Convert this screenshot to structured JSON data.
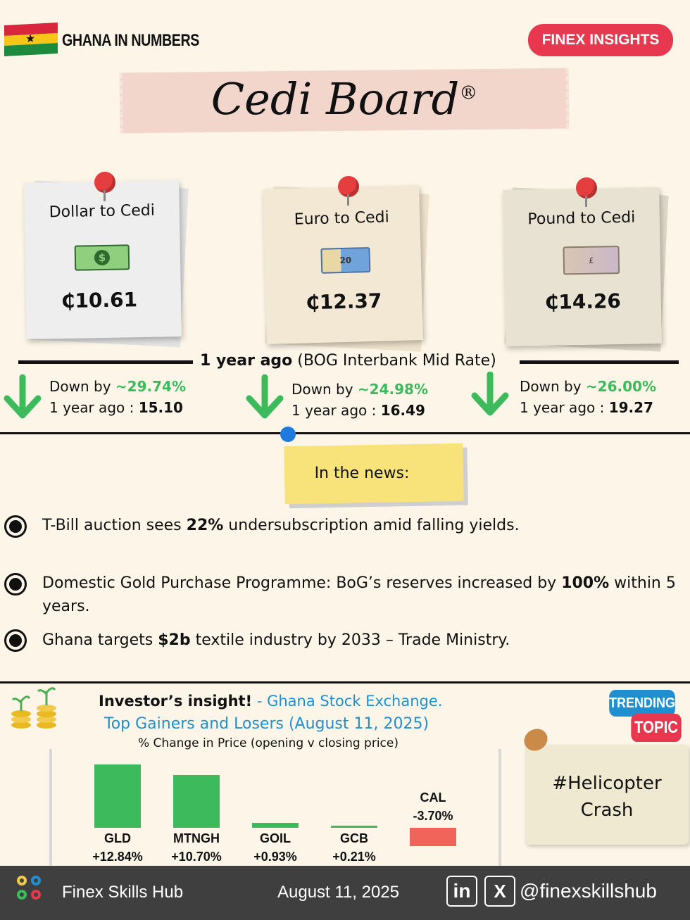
{
  "header": {
    "brand": "GHANA IN NUMBERS",
    "badge": "FINEX INSIGHTS",
    "title": "Cedi Board",
    "title_mark": "®"
  },
  "rates": [
    {
      "label": "Dollar to Cedi",
      "value": "₵10.61",
      "down_text": "Down by",
      "down_pct": "~29.74%",
      "ago_text": "1 year ago :",
      "ago_value": "15.10",
      "icon": "dollar-bill-icon"
    },
    {
      "label": "Euro to Cedi",
      "value": "₵12.37",
      "down_text": "Down by",
      "down_pct": "~24.98%",
      "ago_text": "1 year ago :",
      "ago_value": "16.49",
      "icon": "euro-note-icon"
    },
    {
      "label": "Pound to Cedi",
      "value": "₵14.26",
      "down_text": "Down by",
      "down_pct": "~26.00%",
      "ago_text": "1 year ago :",
      "ago_value": "19.27",
      "icon": "pound-note-icon"
    }
  ],
  "rate_caption": {
    "bold": "1 year ago",
    "rest": " (BOG Interbank Mid Rate)"
  },
  "news": {
    "label": "In the news:",
    "items": [
      {
        "pre": "T-Bill auction sees ",
        "bold": "22%",
        "post": " undersubscription amid falling yields."
      },
      {
        "pre": "Domestic Gold Purchase Programme: BoG’s reserves increased by ",
        "bold": "100%",
        "post": " within 5 years."
      },
      {
        "pre": "Ghana targets ",
        "bold": "$2b",
        "post": " textile industry by 2033 – Trade Ministry."
      }
    ]
  },
  "insight": {
    "title_bold": "Investor’s insight!",
    "title_rest": " - Ghana Stock Exchange.",
    "subtitle": "Top Gainers and Losers (August 11, 2025)",
    "note": "% Change in Price (opening v closing price)"
  },
  "chart_data": {
    "type": "bar",
    "title": "Top Gainers and Losers (August 11, 2025)",
    "ylabel": "% Change in Price (opening v closing price)",
    "categories": [
      "GLD",
      "MTNGH",
      "GOIL",
      "GCB",
      "CAL"
    ],
    "values": [
      12.84,
      10.7,
      0.93,
      0.21,
      -3.7
    ],
    "value_labels": [
      "+12.84%",
      "+10.70%",
      "+0.93%",
      "+0.21%",
      "-3.70%"
    ],
    "colors": {
      "positive": "#3dba5c",
      "negative": "#f0645a"
    }
  },
  "trending": {
    "tag1": "TRENDING",
    "tag2": "TOPIC",
    "topic_line1": "#Helicopter",
    "topic_line2": "Crash"
  },
  "footer": {
    "name": "Finex Skills Hub",
    "date": "August 11, 2025",
    "linkedin": "in",
    "x": "X",
    "handle": "@finexskillshub"
  },
  "colors": {
    "accent_red": "#e8384f",
    "accent_blue": "#1f8fd0",
    "green": "#3dba5c",
    "background": "#fdf6e8"
  }
}
